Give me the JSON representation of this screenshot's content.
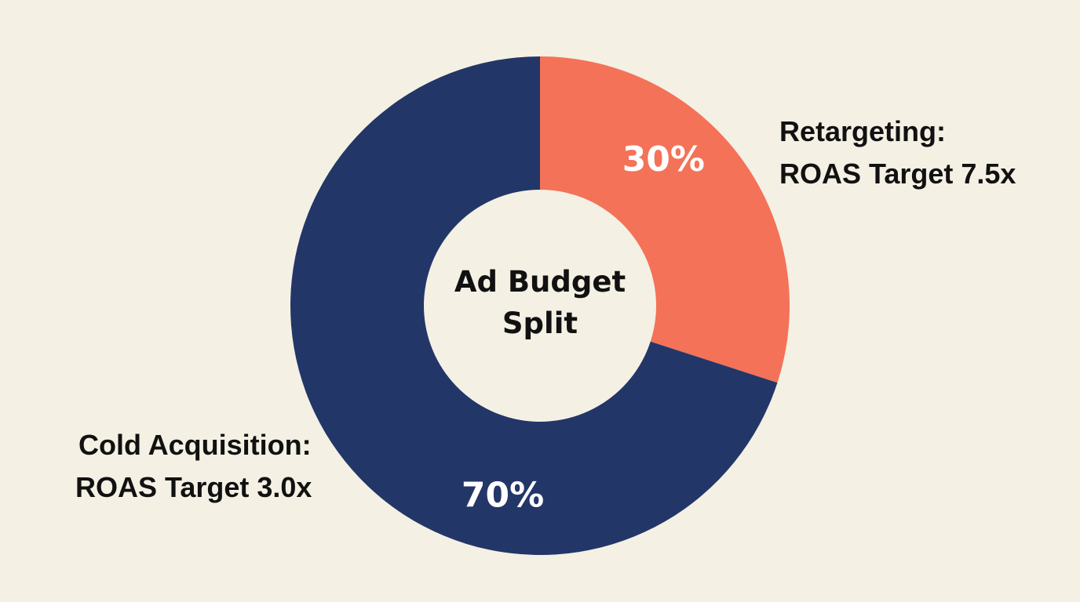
{
  "chart_data": {
    "type": "pie",
    "variant": "donut",
    "title_lines": [
      "Ad Budget",
      "Split"
    ],
    "slices": [
      {
        "key": "retargeting",
        "value": 30,
        "value_label": "30%",
        "color": "#f47257",
        "callout_lines": [
          "Retargeting:",
          "ROAS Target 7.5x"
        ]
      },
      {
        "key": "cold-acquisition",
        "value": 70,
        "value_label": "70%",
        "color": "#233668",
        "callout_lines": [
          "Cold Acquisition:",
          "ROAS Target 3.0x"
        ]
      }
    ],
    "background_color": "#f4f0e4"
  }
}
